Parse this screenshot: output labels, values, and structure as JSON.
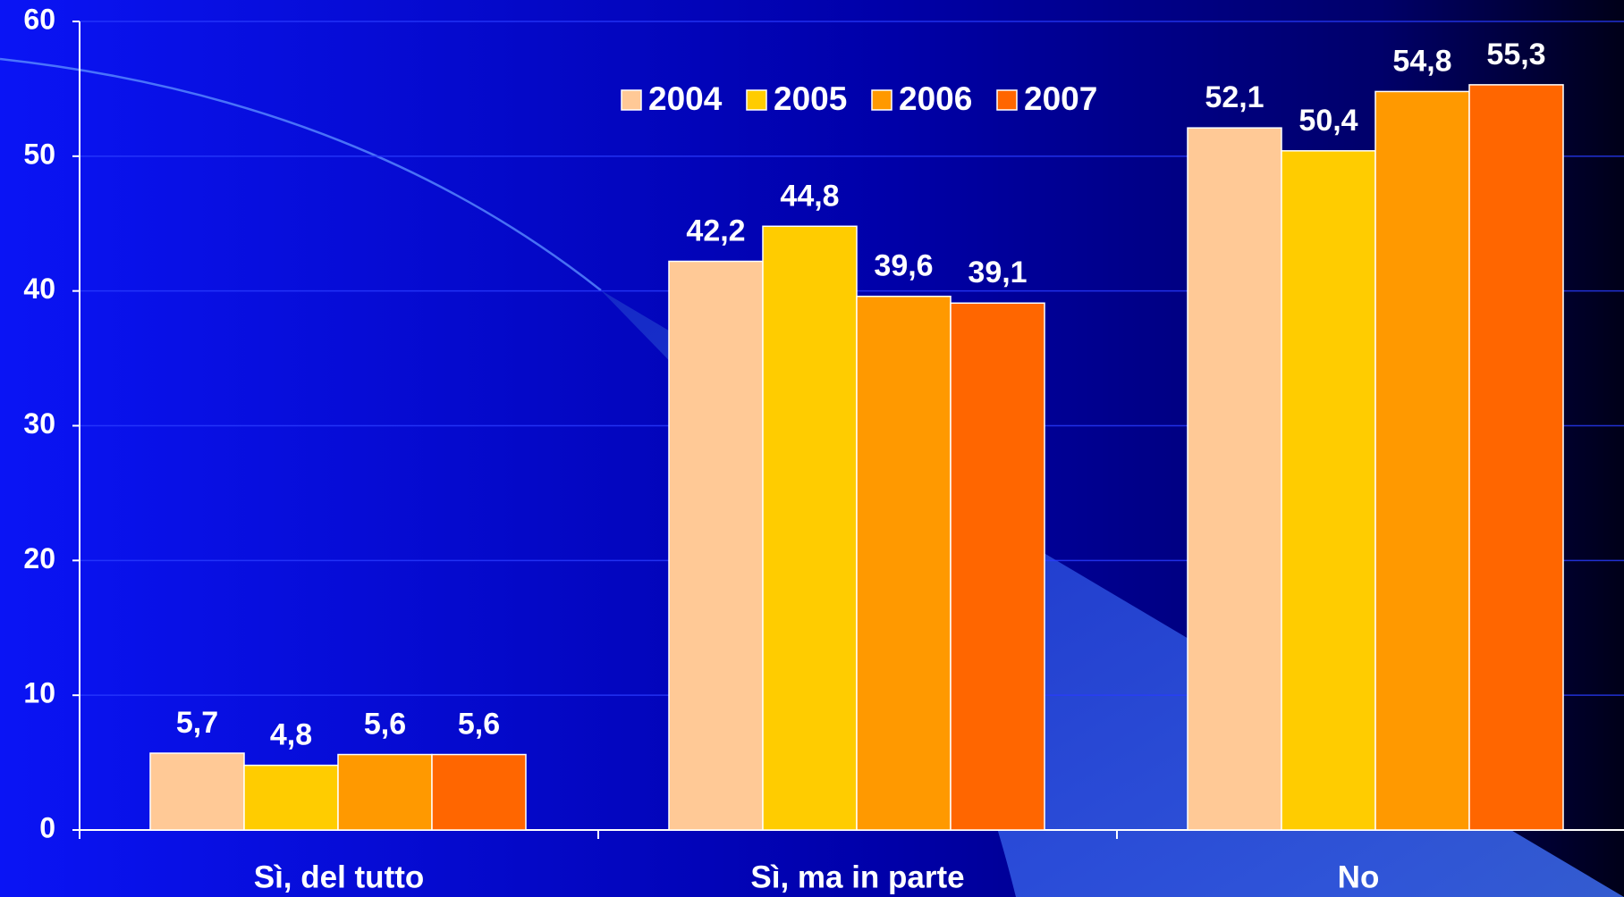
{
  "chart_data": {
    "type": "bar",
    "categories": [
      "Sì, del tutto",
      "Sì, ma in parte",
      "No"
    ],
    "series": [
      {
        "name": "2004",
        "color": "#ffc996",
        "values": [
          5.7,
          42.2,
          52.1
        ],
        "value_labels": [
          "5,7",
          "42,2",
          "52,1"
        ]
      },
      {
        "name": "2005",
        "color": "#ffcc00",
        "values": [
          4.8,
          44.8,
          50.4
        ],
        "value_labels": [
          "4,8",
          "44,8",
          "50,4"
        ]
      },
      {
        "name": "2006",
        "color": "#ff9900",
        "values": [
          5.6,
          39.6,
          54.8
        ],
        "value_labels": [
          "5,6",
          "39,6",
          "54,8"
        ]
      },
      {
        "name": "2007",
        "color": "#ff6600",
        "values": [
          5.6,
          39.1,
          55.3
        ],
        "value_labels": [
          "5,6",
          "39,1",
          "55,3"
        ]
      }
    ],
    "ylim": [
      0,
      60
    ],
    "yticks": [
      0,
      10,
      20,
      30,
      40,
      50,
      60
    ],
    "grid": true,
    "legend": "top"
  }
}
